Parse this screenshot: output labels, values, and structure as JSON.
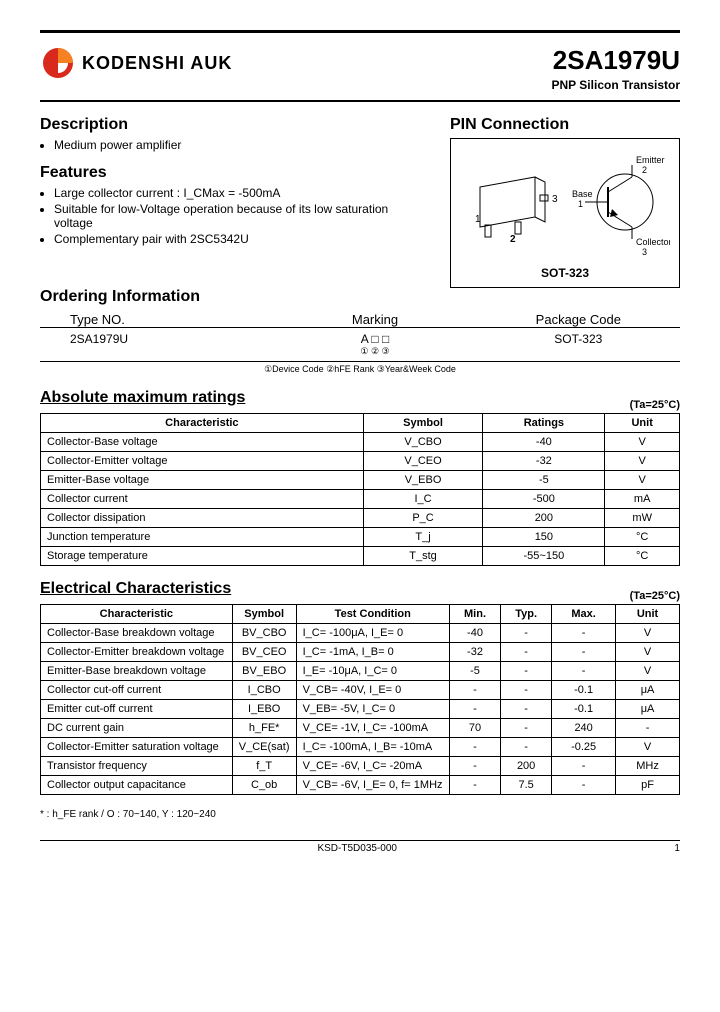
{
  "header": {
    "company": "KODENSHI AUK",
    "part_no": "2SA1979U",
    "subtitle": "PNP Silicon Transistor"
  },
  "description": {
    "title": "Description",
    "items": [
      "Medium power amplifier"
    ]
  },
  "features": {
    "title": "Features",
    "items": [
      "Large collector current : I_CMax = -500mA",
      "Suitable for low-Voltage operation because of its low saturation voltage",
      "Complementary pair with 2SC5342U"
    ]
  },
  "pin": {
    "title": "PIN Connection",
    "package": "SOT-323",
    "labels": {
      "emitter": "Emitter",
      "base": "Base",
      "collector": "Collector"
    }
  },
  "ordering": {
    "title": "Ordering Information",
    "headers": [
      "Type NO.",
      "Marking",
      "Package Code"
    ],
    "row": {
      "type": "2SA1979U",
      "marking": "A □ □",
      "marking_sub": "① ② ③",
      "package": "SOT-323"
    },
    "note": "①Device Code ②hFE Rank ③Year&Week Code"
  },
  "abs_max": {
    "title": "Absolute maximum ratings",
    "ta": "(Ta=25°C)",
    "headers": [
      "Characteristic",
      "Symbol",
      "Ratings",
      "Unit"
    ],
    "rows": [
      [
        "Collector-Base voltage",
        "V_CBO",
        "-40",
        "V"
      ],
      [
        "Collector-Emitter voltage",
        "V_CEO",
        "-32",
        "V"
      ],
      [
        "Emitter-Base voltage",
        "V_EBO",
        "-5",
        "V"
      ],
      [
        "Collector current",
        "I_C",
        "-500",
        "mA"
      ],
      [
        "Collector dissipation",
        "P_C",
        "200",
        "mW"
      ],
      [
        "Junction temperature",
        "T_j",
        "150",
        "°C"
      ],
      [
        "Storage temperature",
        "T_stg",
        "-55~150",
        "°C"
      ]
    ]
  },
  "elec": {
    "title": "Electrical Characteristics",
    "ta": "(Ta=25°C)",
    "headers": [
      "Characteristic",
      "Symbol",
      "Test Condition",
      "Min.",
      "Typ.",
      "Max.",
      "Unit"
    ],
    "rows": [
      [
        "Collector-Base breakdown voltage",
        "BV_CBO",
        "I_C= -100μA, I_E= 0",
        "-40",
        "-",
        "-",
        "V"
      ],
      [
        "Collector-Emitter breakdown voltage",
        "BV_CEO",
        "I_C= -1mA, I_B= 0",
        "-32",
        "-",
        "-",
        "V"
      ],
      [
        "Emitter-Base breakdown voltage",
        "BV_EBO",
        "I_E= -10μA, I_C= 0",
        "-5",
        "-",
        "-",
        "V"
      ],
      [
        "Collector cut-off current",
        "I_CBO",
        "V_CB= -40V, I_E= 0",
        "-",
        "-",
        "-0.1",
        "μA"
      ],
      [
        "Emitter cut-off current",
        "I_EBO",
        "V_EB= -5V, I_C= 0",
        "-",
        "-",
        "-0.1",
        "μA"
      ],
      [
        "DC current gain",
        "h_FE*",
        "V_CE= -1V, I_C= -100mA",
        "70",
        "-",
        "240",
        "-"
      ],
      [
        "Collector-Emitter saturation voltage",
        "V_CE(sat)",
        "I_C= -100mA, I_B= -10mA",
        "-",
        "-",
        "-0.25",
        "V"
      ],
      [
        "Transistor frequency",
        "f_T",
        "V_CE= -6V, I_C= -20mA",
        "-",
        "200",
        "-",
        "MHz"
      ],
      [
        "Collector output capacitance",
        "C_ob",
        "V_CB= -6V, I_E= 0, f= 1MHz",
        "-",
        "7.5",
        "-",
        "pF"
      ]
    ]
  },
  "footnote": "*  : h_FE rank / O : 70~140, Y : 120~240",
  "footer": {
    "doc": "KSD-T5D035-000",
    "page": "1"
  },
  "colors": {
    "logo_red": "#d9281c",
    "logo_orange": "#f58220"
  }
}
